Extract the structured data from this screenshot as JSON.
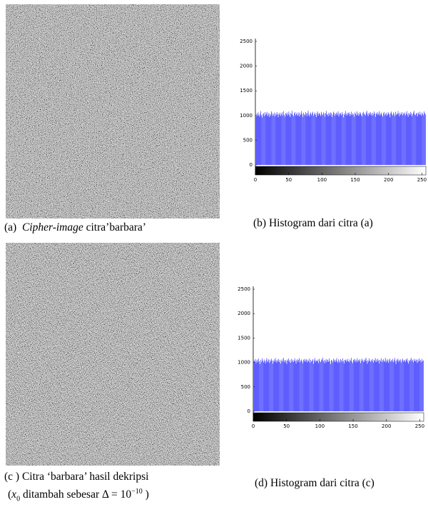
{
  "figures": [
    {
      "label": "(a)",
      "italic": "Cipher-image",
      "text": "citra’barbara’"
    },
    {
      "line1": "(c ) Citra ‘barbara’ hasil dekripsi",
      "open": "(",
      "var": "x",
      "sub": "0",
      "mid": " ditambah sebesar Δ = 10",
      "sup": "−10",
      "close": " )"
    }
  ],
  "chart_data": [
    {
      "type": "histogram",
      "caption": "(b)  Histogram dari citra (a)",
      "color": "#0000ff",
      "ylim": [
        0,
        2500
      ],
      "yticks": [
        0,
        500,
        1000,
        1500,
        2000,
        2500
      ],
      "xlim": [
        0,
        256
      ],
      "xticks": [
        0,
        50,
        100,
        150,
        200,
        250
      ],
      "bins": [
        0,
        1,
        2,
        3,
        4,
        5,
        6,
        7,
        8,
        9,
        10,
        11,
        12,
        13,
        14,
        15,
        16,
        17,
        18,
        19,
        20,
        21,
        22,
        23,
        24,
        25,
        26,
        27,
        28,
        29,
        30,
        31,
        32,
        33,
        34,
        35,
        36,
        37,
        38,
        39,
        40,
        41,
        42,
        43,
        44,
        45,
        46,
        47,
        48,
        49,
        50,
        51,
        52,
        53,
        54,
        55,
        56,
        57,
        58,
        59,
        60,
        61,
        62,
        63,
        64,
        65,
        66,
        67,
        68,
        69,
        70,
        71,
        72,
        73,
        74,
        75,
        76,
        77,
        78,
        79,
        80,
        81,
        82,
        83,
        84,
        85,
        86,
        87,
        88,
        89,
        90,
        91,
        92,
        93,
        94,
        95,
        96,
        97,
        98,
        99,
        100,
        101,
        102,
        103,
        104,
        105,
        106,
        107,
        108,
        109,
        110,
        111,
        112,
        113,
        114,
        115,
        116,
        117,
        118,
        119,
        120,
        121,
        122,
        123,
        124,
        125,
        126,
        127,
        128,
        129,
        130,
        131,
        132,
        133,
        134,
        135,
        136,
        137,
        138,
        139,
        140,
        141,
        142,
        143,
        144,
        145,
        146,
        147,
        148,
        149,
        150,
        151,
        152,
        153,
        154,
        155,
        156,
        157,
        158,
        159,
        160,
        161,
        162,
        163,
        164,
        165,
        166,
        167,
        168,
        169,
        170,
        171,
        172,
        173,
        174,
        175,
        176,
        177,
        178,
        179,
        180,
        181,
        182,
        183,
        184,
        185,
        186,
        187,
        188,
        189,
        190,
        191,
        192,
        193,
        194,
        195,
        196,
        197,
        198,
        199,
        200,
        201,
        202,
        203,
        204,
        205,
        206,
        207,
        208,
        209,
        210,
        211,
        212,
        213,
        214,
        215,
        216,
        217,
        218,
        219,
        220,
        221,
        222,
        223,
        224,
        225,
        226,
        227,
        228,
        229,
        230,
        231,
        232,
        233,
        234,
        235,
        236,
        237,
        238,
        239,
        240,
        241,
        242,
        243,
        244,
        245,
        246,
        247,
        248,
        249,
        250,
        251,
        252,
        253,
        254,
        255,
        256
      ],
      "values": [
        1020,
        985,
        1048,
        997,
        1063,
        1012,
        978,
        1035,
        1090,
        1004,
        962,
        1027,
        1051,
        993,
        1068,
        1010,
        1042,
        1075,
        988,
        1019,
        1056,
        970,
        1033,
        1001,
        1084,
        1047,
        995,
        1022,
        1061,
        983,
        1039,
        1009,
        1071,
        1026,
        966,
        1044,
        1013,
        1058,
        991,
        1030,
        1066,
        1002,
        1087,
        1018,
        976,
        1049,
        1024,
        1062,
        998,
        1037,
        1081,
        1007,
        969,
        1053,
        1028,
        1094,
        1016,
        985,
        1043,
        1070,
        1005,
        1032,
        1059,
        992,
        1021,
        1065,
        980,
        1046,
        1011,
        1088,
        1034,
        973,
        1057,
        1025,
        1003,
        1069,
        1040,
        987,
        1052,
        1097,
        1014,
        979,
        1036,
        1063,
        1008,
        1045,
        1076,
        994,
        1029,
        1060,
        1017,
        968,
        1048,
        1083,
        1001,
        1038,
        1055,
        1022,
        990,
        1072,
        1031,
        1006,
        1064,
        1041,
        977,
        1050,
        1093,
        1015,
        1027,
        984,
        1058,
        1035,
        1000,
        1067,
        1044,
        971,
        1019,
        1079,
        1052,
        996,
        1033,
        1061,
        1010,
        1046,
        1086,
        982,
        1024,
        1057,
        1039,
        1004,
        1070,
        1026,
        963,
        1047,
        1013,
        1091,
        1036,
        998,
        1055,
        1021,
        1068,
        1042,
        989,
        1030,
        1077,
        1011,
        1049,
        1023,
        975,
        1062,
        1038,
        1003,
        1085,
        1016,
        1054,
        993,
        1029,
        1066,
        1045,
        1008,
        981,
        1050,
        1074,
        1020,
        1037,
        1002,
        1063,
        1096,
        1027,
        986,
        1044,
        1058,
        1012,
        1071,
        1034,
        997,
        1056,
        1018,
        1082,
        1040,
        972,
        1051,
        1025,
        1067,
        1009,
        1043,
        1088,
        1000,
        1031,
        1060,
        1014,
        979,
        1048,
        1073,
        1006,
        1035,
        1057,
        992,
        1022,
        1069,
        1045,
        1017,
        964,
        1053,
        1081,
        1028,
        1003,
        1062,
        1036,
        990,
        1076,
        1011,
        1047,
        1024,
        1092,
        1039,
        985,
        1058,
        1015,
        1033,
        1070,
        1005,
        1050,
        1027,
        1064,
        1001,
        1041,
        1087,
        1019,
        974,
        1055,
        1032,
        1010,
        1072,
        1046,
        988,
        1029,
        1061,
        1094,
        1021,
        1008,
        1052,
        1037,
        980,
        1066,
        1042,
        1013,
        1078,
        1025,
        996,
        1059,
        1034,
        1007,
        1083,
        1048,
        1020
      ]
    },
    {
      "type": "histogram",
      "caption": "(d)  Histogram dari  citra (c)",
      "color": "#0000ff",
      "ylim": [
        0,
        2500
      ],
      "yticks": [
        0,
        500,
        1000,
        1500,
        2000,
        2500
      ],
      "xlim": [
        0,
        256
      ],
      "xticks": [
        0,
        50,
        100,
        150,
        200,
        250
      ],
      "bins": [
        0,
        1,
        2,
        3,
        4,
        5,
        6,
        7,
        8,
        9,
        10,
        11,
        12,
        13,
        14,
        15,
        16,
        17,
        18,
        19,
        20,
        21,
        22,
        23,
        24,
        25,
        26,
        27,
        28,
        29,
        30,
        31,
        32,
        33,
        34,
        35,
        36,
        37,
        38,
        39,
        40,
        41,
        42,
        43,
        44,
        45,
        46,
        47,
        48,
        49,
        50,
        51,
        52,
        53,
        54,
        55,
        56,
        57,
        58,
        59,
        60,
        61,
        62,
        63,
        64,
        65,
        66,
        67,
        68,
        69,
        70,
        71,
        72,
        73,
        74,
        75,
        76,
        77,
        78,
        79,
        80,
        81,
        82,
        83,
        84,
        85,
        86,
        87,
        88,
        89,
        90,
        91,
        92,
        93,
        94,
        95,
        96,
        97,
        98,
        99,
        100,
        101,
        102,
        103,
        104,
        105,
        106,
        107,
        108,
        109,
        110,
        111,
        112,
        113,
        114,
        115,
        116,
        117,
        118,
        119,
        120,
        121,
        122,
        123,
        124,
        125,
        126,
        127,
        128,
        129,
        130,
        131,
        132,
        133,
        134,
        135,
        136,
        137,
        138,
        139,
        140,
        141,
        142,
        143,
        144,
        145,
        146,
        147,
        148,
        149,
        150,
        151,
        152,
        153,
        154,
        155,
        156,
        157,
        158,
        159,
        160,
        161,
        162,
        163,
        164,
        165,
        166,
        167,
        168,
        169,
        170,
        171,
        172,
        173,
        174,
        175,
        176,
        177,
        178,
        179,
        180,
        181,
        182,
        183,
        184,
        185,
        186,
        187,
        188,
        189,
        190,
        191,
        192,
        193,
        194,
        195,
        196,
        197,
        198,
        199,
        200,
        201,
        202,
        203,
        204,
        205,
        206,
        207,
        208,
        209,
        210,
        211,
        212,
        213,
        214,
        215,
        216,
        217,
        218,
        219,
        220,
        221,
        222,
        223,
        224,
        225,
        226,
        227,
        228,
        229,
        230,
        231,
        232,
        233,
        234,
        235,
        236,
        237,
        238,
        239,
        240,
        241,
        242,
        243,
        244,
        245,
        246,
        247,
        248,
        249,
        250,
        251,
        252,
        253,
        254,
        255,
        256
      ],
      "values": [
        995,
        1041,
        1018,
        1070,
        987,
        1032,
        1058,
        1004,
        1079,
        1023,
        966,
        1050,
        1012,
        1085,
        1037,
        1000,
        1061,
        1026,
        983,
        1046,
        1093,
        1009,
        1035,
        1068,
        991,
        1054,
        1020,
        1077,
        1043,
        975,
        1030,
        1062,
        1015,
        1088,
        1039,
        998,
        1057,
        1024,
        1071,
        1006,
        1049,
        981,
        1034,
        1065,
        1017,
        1095,
        1042,
        1003,
        1053,
        1028,
        970,
        1060,
        1036,
        1082,
        1011,
        1047,
        994,
        1073,
        1021,
        1056,
        1008,
        1039,
        1086,
        1029,
        977,
        1045,
        1067,
        1014,
        1052,
        1090,
        1001,
        1038,
        1063,
        1025,
        986,
        1058,
        1032,
        1075,
        1016,
        1049,
        1069,
        1003,
        1044,
        1027,
        1080,
        995,
        1055,
        1019,
        1037,
        1066,
        972,
        1041,
        1091,
        1010,
        1048,
        1034,
        1022,
        1059,
        987,
        1074,
        1030,
        1007,
        1064,
        1045,
        1097,
        1018,
        1051,
        983,
        1036,
        1070,
        1004,
        1060,
        1043,
        1013,
        1084,
        1026,
        968,
        1053,
        1039,
        1002,
        1078,
        1031,
        1057,
        1009,
        1045,
        1089,
        1020,
        992,
        1065,
        1035,
        1000,
        1071,
        1047,
        1016,
        1082,
        1028,
        979,
        1054,
        1040,
        1063,
        1011,
        1038,
        1076,
        1023,
        1005,
        1059,
        1033,
        1094,
        1019,
        985,
        1050,
        1072,
        1026,
        1061,
        1003,
        1044,
        1087,
        1014,
        1052,
        1030,
        1068,
        990,
        1036,
        1079,
        1042,
        1008,
        1056,
        1021,
        1065,
        1099,
        1031,
        974,
        1047,
        1017,
        1083,
        1039,
        1012,
        1058,
        1027,
        1070,
        996,
        1049,
        1035,
        1090,
        1006,
        1062,
        1023,
        1075,
        1041,
        981,
        1054,
        1029,
        1087,
        1010,
        1045,
        1066,
        1018,
        1033,
        1096,
        1002,
        1057,
        1024,
        1068,
        992,
        1040,
        1081,
        1015,
        1050,
        1031,
        1073,
        1004,
        1046,
        1092,
        1022,
        967,
        1060,
        1037,
        1078,
        1013,
        1055,
        1029,
        1064,
        998,
        1043,
        1080,
        1019,
        1052,
        1035,
        1007,
        1069,
        1042,
        1085,
        1011,
        976,
        1048,
        1026,
        1061,
        1093,
        1032,
        1056,
        1003,
        1074,
        1038,
        1021,
        1067,
        1045,
        989,
        1059,
        1016,
        1083,
        1034,
        1051,
        1008,
        1070,
        1027,
        1044
      ]
    }
  ]
}
